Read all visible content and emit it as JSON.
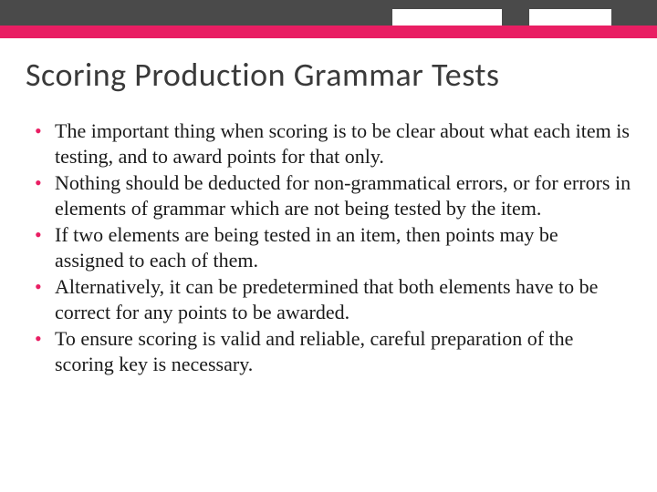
{
  "colors": {
    "accent": "#e91e63",
    "header_dark": "#4a4a4a",
    "text": "#1a1a1a",
    "title": "#3a3a3a",
    "background": "#ffffff"
  },
  "typography": {
    "title_fontsize": 36,
    "title_weight": 300,
    "body_fontsize": 22,
    "body_family": "Georgia"
  },
  "title": "Scoring Production Grammar Tests",
  "bullets": [
    "The important thing when scoring is to be clear about what each item is testing, and to award points for that only.",
    "Nothing should be deducted for non-grammatical errors, or for errors in elements of grammar which are not being tested  by the item.",
    "If two elements are being tested in an item, then points may be assigned to each of them.",
    "Alternatively, it can be predetermined that both elements have to be correct for any points to be awarded.",
    "To ensure scoring is valid and reliable, careful preparation of the scoring key is necessary."
  ]
}
